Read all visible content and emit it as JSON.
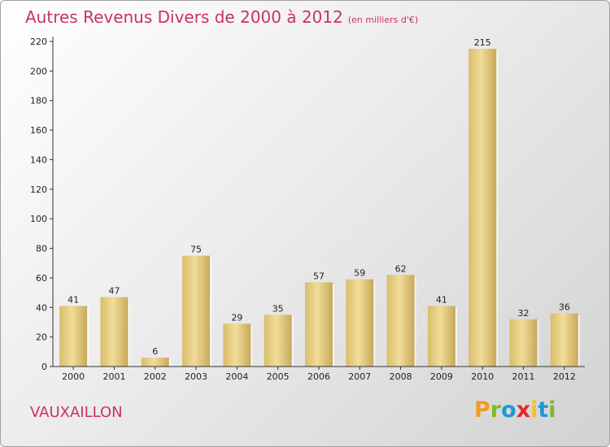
{
  "header": {
    "title": "Autres Revenus Divers de 2000 à 2012",
    "unit": "(en milliers d'€)"
  },
  "footer": {
    "commune": "VAUXAILLON",
    "logo_letters": [
      "P",
      "r",
      "o",
      "x",
      "i",
      "t",
      "i"
    ],
    "logo_colors": [
      "#f39a1e",
      "#7fb82a",
      "#1b9ad6",
      "#e8262d",
      "#f3c21e",
      "#1b9ad6",
      "#7fb82a"
    ]
  },
  "chart_data": {
    "type": "bar",
    "categories": [
      "2000",
      "2001",
      "2002",
      "2003",
      "2004",
      "2005",
      "2006",
      "2007",
      "2008",
      "2009",
      "2010",
      "2011",
      "2012"
    ],
    "values": [
      41,
      47,
      6,
      75,
      29,
      35,
      57,
      59,
      62,
      41,
      215,
      32,
      36
    ],
    "title": "Autres Revenus Divers de 2000 à 2012",
    "xlabel": "",
    "ylabel": "",
    "ylim": [
      0,
      220
    ],
    "yticks": [
      0,
      20,
      40,
      60,
      80,
      100,
      120,
      140,
      160,
      180,
      200,
      220
    ],
    "grid": false,
    "bar_color": "#e8cf7e"
  }
}
